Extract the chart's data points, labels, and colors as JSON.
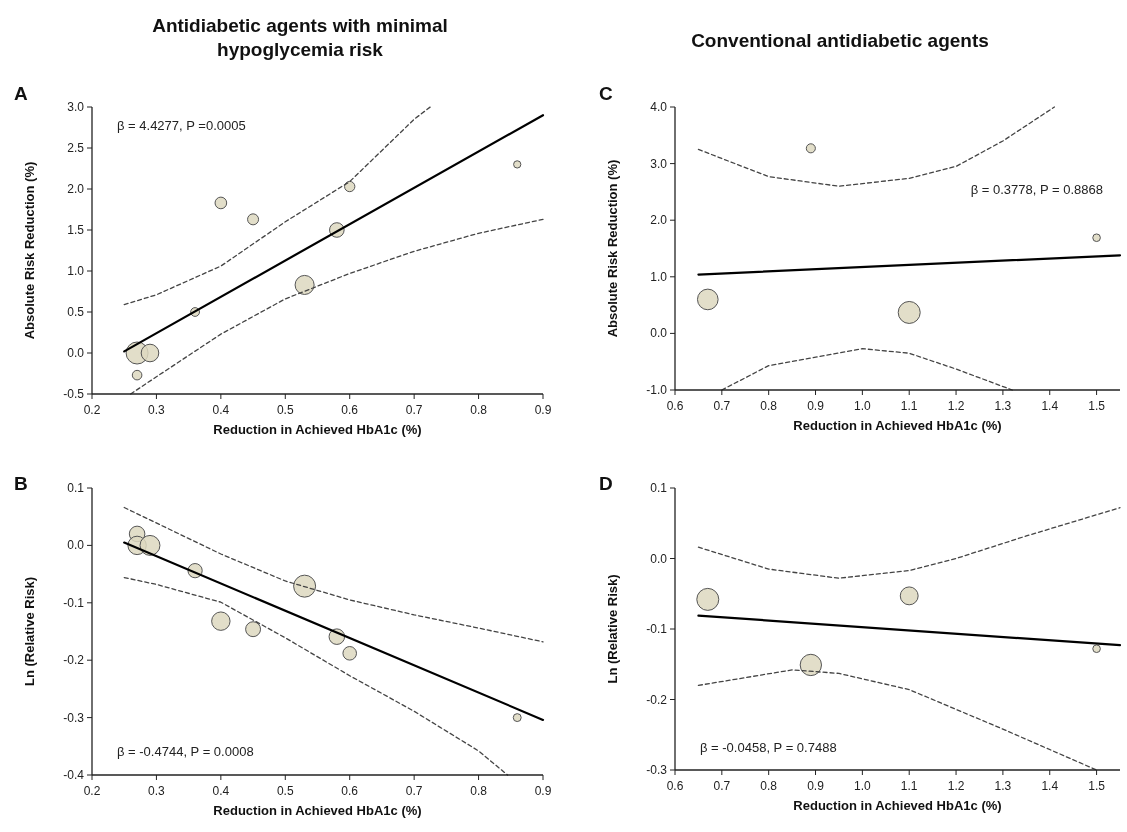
{
  "chart_data": [
    {
      "type": "bubble",
      "title": "Antidiabetic agents with minimal hypoglycemia risk",
      "xlabel": "Reduction in Achieved HbA1c (%)",
      "ylabel": "Absolute Risk Reduction (%)",
      "annotations": [
        "A",
        "β = 4.4277, P =0.0005"
      ],
      "xlim": [
        0.2,
        0.9
      ],
      "xticks": [
        0.2,
        0.3,
        0.4,
        0.5,
        0.6,
        0.7,
        0.8,
        0.9
      ],
      "ylim": [
        -0.5,
        3.0
      ],
      "yticks": [
        -0.5,
        {
          "value": 0,
          "label": "0.0"
        },
        0.5,
        {
          "value": 1,
          "label": "1.0"
        },
        1.5,
        {
          "value": 2,
          "label": "2.0"
        },
        2.5,
        {
          "value": 3,
          "label": "3.0"
        }
      ],
      "series": [
        {
          "color": "#ddd8c0",
          "x": [
            0.27,
            0.29,
            0.27,
            0.36,
            0.4,
            0.45,
            0.53,
            0.58,
            0.6,
            0.86
          ],
          "values": [
            0.0,
            0.0,
            -0.27,
            0.5,
            1.83,
            1.63,
            0.83,
            1.5,
            2.03,
            2.3
          ],
          "sizes": [
            1,
            0.64,
            0.19,
            0.16,
            0.28,
            0.25,
            0.75,
            0.44,
            0.22,
            0.11
          ]
        },
        {
          "type": "line",
          "color": "#000000",
          "x": [
            0.25,
            0.9
          ],
          "values": [
            0.02,
            2.9
          ]
        },
        {
          "type": "line",
          "color": "#444444",
          "line_style": "dashed",
          "x": [
            0.25,
            0.3,
            0.4,
            0.5,
            0.6,
            0.7,
            0.725
          ],
          "values": [
            0.59,
            0.71,
            1.06,
            1.6,
            2.09,
            2.85,
            3.0
          ]
        },
        {
          "type": "line",
          "color": "#444444",
          "line_style": "dashed",
          "x": [
            0.26,
            0.3,
            0.4,
            0.5,
            0.6,
            0.7,
            0.8,
            0.9
          ],
          "values": [
            -0.5,
            -0.29,
            0.23,
            0.66,
            0.97,
            1.24,
            1.46,
            1.63
          ]
        }
      ]
    },
    {
      "type": "bubble",
      "title": "Conventional antidiabetic agents",
      "xlabel": "Reduction in Achieved HbA1c (%)",
      "ylabel": "Absolute Risk Reduction (%)",
      "annotations": [
        "C",
        "β = 0.3778, P = 0.8868"
      ],
      "xlim": [
        0.6,
        1.55
      ],
      "xticks": [
        0.6,
        0.7,
        0.8,
        0.9,
        {
          "value": 1,
          "label": "1.0"
        },
        1.1,
        1.2,
        1.3,
        1.4,
        1.5
      ],
      "ylim": [
        -1.0,
        4.0
      ],
      "yticks": [
        {
          "value": -1,
          "label": "-1.0"
        },
        {
          "value": 0,
          "label": "0.0"
        },
        {
          "value": 1,
          "label": "1.0"
        },
        {
          "value": 2,
          "label": "2.0"
        },
        {
          "value": 3,
          "label": "3.0"
        },
        {
          "value": 4,
          "label": "4.0"
        }
      ],
      "series": [
        {
          "color": "#ddd8c0",
          "x": [
            0.67,
            0.89,
            1.1,
            1.5
          ],
          "values": [
            0.6,
            3.27,
            0.37,
            1.69
          ],
          "sizes": [
            0.88,
            0.17,
            1,
            0.12
          ]
        },
        {
          "type": "line",
          "color": "#000000",
          "x": [
            0.65,
            1.55
          ],
          "values": [
            1.04,
            1.38
          ]
        },
        {
          "type": "line",
          "color": "#444444",
          "line_style": "dashed",
          "x": [
            0.65,
            0.8,
            0.95,
            1.1,
            1.2,
            1.3,
            1.41
          ],
          "values": [
            3.25,
            2.77,
            2.6,
            2.74,
            2.95,
            3.4,
            4.0
          ]
        },
        {
          "type": "line",
          "color": "#444444",
          "line_style": "dashed",
          "x": [
            0.7,
            0.8,
            1.0,
            1.1,
            1.2,
            1.32
          ],
          "values": [
            -1.0,
            -0.57,
            -0.27,
            -0.35,
            -0.63,
            -1.0
          ]
        }
      ]
    },
    {
      "type": "bubble",
      "xlabel": "Reduction in Achieved HbA1c (%)",
      "ylabel": "Ln (Relative Risk)",
      "annotations": [
        "B",
        "β = -0.4744, P = 0.0008"
      ],
      "xlim": [
        0.2,
        0.9
      ],
      "xticks": [
        0.2,
        0.3,
        0.4,
        0.5,
        0.6,
        0.7,
        0.8,
        0.9
      ],
      "ylim": [
        -0.4,
        0.1
      ],
      "yticks": [
        -0.4,
        -0.3,
        -0.2,
        -0.1,
        {
          "value": 0,
          "label": "0.0"
        },
        0.1
      ],
      "series": [
        {
          "color": "#ddd8c0",
          "x": [
            0.27,
            0.27,
            0.29,
            0.36,
            0.4,
            0.45,
            0.53,
            0.58,
            0.6,
            0.86
          ],
          "values": [
            0.02,
            0.0,
            0.0,
            -0.044,
            -0.132,
            -0.146,
            -0.071,
            -0.159,
            -0.188,
            -0.3
          ],
          "sizes": [
            0.5,
            0.7,
            0.82,
            0.42,
            0.7,
            0.46,
            1,
            0.5,
            0.38,
            0.13
          ]
        },
        {
          "type": "line",
          "color": "#000000",
          "x": [
            0.25,
            0.9
          ],
          "values": [
            0.005,
            -0.304
          ]
        },
        {
          "type": "line",
          "color": "#444444",
          "line_style": "dashed",
          "x": [
            0.25,
            0.4,
            0.5,
            0.6,
            0.7,
            0.8,
            0.9
          ],
          "values": [
            0.066,
            -0.015,
            -0.062,
            -0.095,
            -0.121,
            -0.144,
            -0.168
          ]
        },
        {
          "type": "line",
          "color": "#444444",
          "line_style": "dashed",
          "x": [
            0.25,
            0.3,
            0.4,
            0.5,
            0.6,
            0.7,
            0.8,
            0.845
          ],
          "values": [
            -0.056,
            -0.068,
            -0.099,
            -0.161,
            -0.227,
            -0.289,
            -0.358,
            -0.4
          ]
        }
      ]
    },
    {
      "type": "bubble",
      "xlabel": "Reduction in Achieved HbA1c (%)",
      "ylabel": "Ln (Relative Risk)",
      "annotations": [
        "D",
        "β = -0.0458, P = 0.7488"
      ],
      "xlim": [
        0.6,
        1.55
      ],
      "xticks": [
        0.6,
        0.7,
        0.8,
        0.9,
        {
          "value": 1,
          "label": "1.0"
        },
        1.1,
        1.2,
        1.3,
        1.4,
        1.5
      ],
      "ylim": [
        -0.3,
        0.1
      ],
      "yticks": [
        -0.3,
        -0.2,
        -0.1,
        {
          "value": 0,
          "label": "0.0"
        },
        0.1
      ],
      "series": [
        {
          "color": "#ddd8c0",
          "x": [
            0.67,
            0.89,
            1.1,
            1.5
          ],
          "values": [
            -0.058,
            -0.151,
            -0.053,
            -0.128
          ],
          "sizes": [
            1,
            0.94,
            0.66,
            0.12
          ]
        },
        {
          "type": "line",
          "color": "#000000",
          "x": [
            0.65,
            1.55
          ],
          "values": [
            -0.081,
            -0.123
          ]
        },
        {
          "type": "line",
          "color": "#444444",
          "line_style": "dashed",
          "x": [
            0.65,
            0.8,
            0.95,
            1.1,
            1.2,
            1.35,
            1.55
          ],
          "values": [
            0.016,
            -0.015,
            -0.028,
            -0.017,
            0.0,
            0.032,
            0.072
          ]
        },
        {
          "type": "line",
          "color": "#444444",
          "line_style": "dashed",
          "x": [
            0.65,
            0.85,
            0.95,
            1.1,
            1.3,
            1.5
          ],
          "values": [
            -0.18,
            -0.158,
            -0.163,
            -0.186,
            -0.242,
            -0.3
          ]
        }
      ]
    }
  ]
}
